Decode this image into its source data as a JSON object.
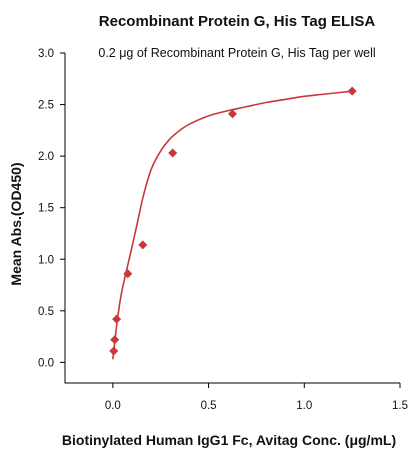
{
  "chart_data": {
    "type": "scatter",
    "title": "Recombinant Protein G, His Tag ELISA",
    "subtitle": "0.2 μg of Recombinant Protein G, His Tag per well",
    "xlabel": "Biotinylated Human IgG1 Fc, Avitag Conc. (μg/mL)",
    "ylabel": "Mean Abs.(OD450)",
    "xlim": [
      -0.25,
      1.5
    ],
    "ylim": [
      -0.2,
      3.0
    ],
    "x_ticks": [
      0.0,
      0.5,
      1.0,
      1.5
    ],
    "x_tick_labels": [
      "0.0",
      "0.5",
      "1.0",
      "1.5"
    ],
    "y_ticks": [
      0.0,
      0.5,
      1.0,
      1.5,
      2.0,
      2.5,
      3.0
    ],
    "y_tick_labels": [
      "0.0",
      "0.5",
      "1.0",
      "1.5",
      "2.0",
      "2.5",
      "3.0"
    ],
    "grid": false,
    "color": "#C8373A",
    "marker": "diamond",
    "series": [
      {
        "points": [
          {
            "x": 0.0049,
            "y": 0.11
          },
          {
            "x": 0.0098,
            "y": 0.22
          },
          {
            "x": 0.0195,
            "y": 0.42
          },
          {
            "x": 0.0781,
            "y": 0.86
          },
          {
            "x": 0.1563,
            "y": 1.14
          },
          {
            "x": 0.3125,
            "y": 2.03
          },
          {
            "x": 0.625,
            "y": 2.41
          },
          {
            "x": 1.25,
            "y": 2.63
          }
        ],
        "fit_curve": {
          "x": [
            0.0,
            0.02,
            0.04,
            0.06,
            0.08,
            0.1,
            0.13,
            0.16,
            0.2,
            0.25,
            0.3,
            0.35,
            0.4,
            0.5,
            0.6,
            0.7,
            0.8,
            0.9,
            1.0,
            1.1,
            1.25
          ],
          "y": [
            0.03,
            0.36,
            0.62,
            0.8,
            0.96,
            1.12,
            1.37,
            1.62,
            1.87,
            2.05,
            2.17,
            2.25,
            2.31,
            2.39,
            2.44,
            2.48,
            2.52,
            2.55,
            2.58,
            2.6,
            2.63
          ]
        }
      }
    ]
  }
}
